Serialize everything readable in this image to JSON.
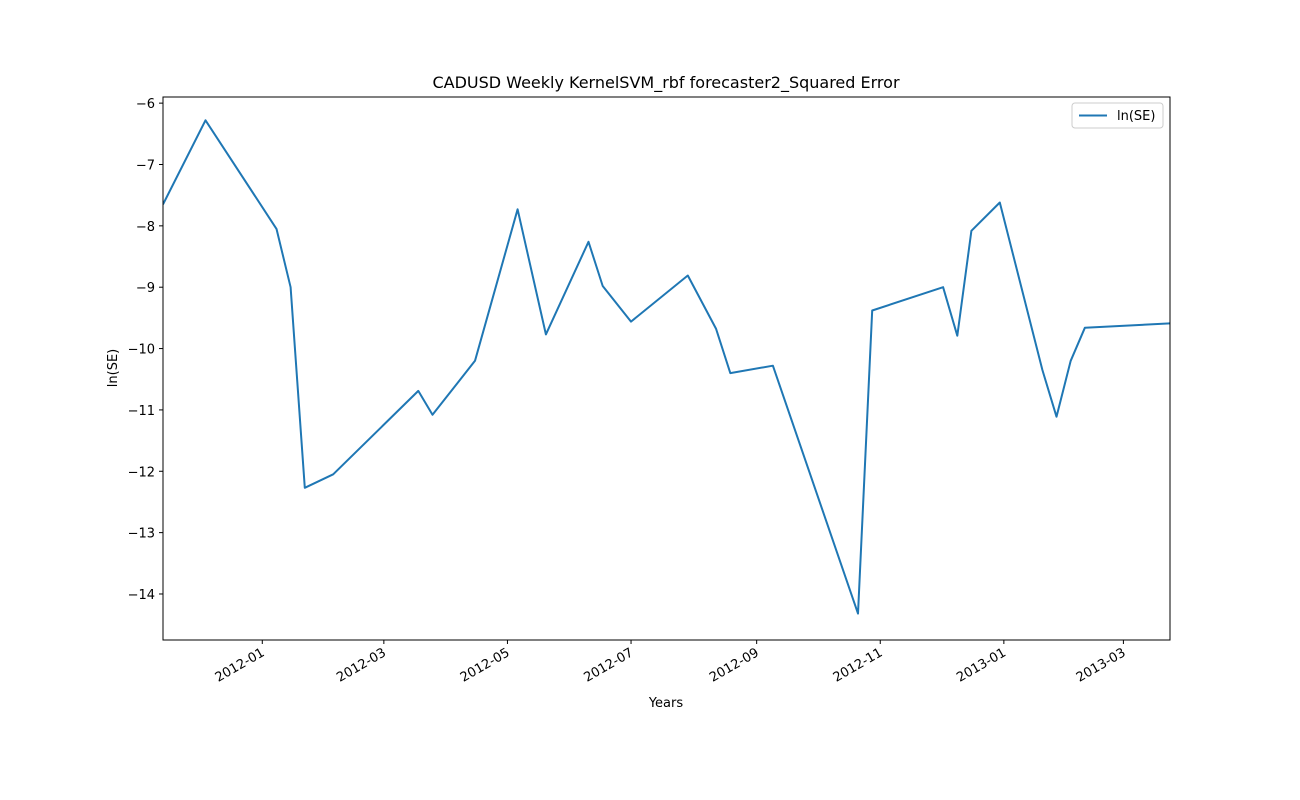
{
  "chart_data": {
    "type": "line",
    "title": "CADUSD Weekly KernelSVM_rbf forecaster2_Squared Error",
    "xlabel": "Years",
    "ylabel": "ln(SE)",
    "x_tick_labels": [
      "2012-01",
      "2012-03",
      "2012-05",
      "2012-07",
      "2012-09",
      "2012-11",
      "2013-01",
      "2013-03"
    ],
    "y_tick_labels": [
      "−6",
      "−7",
      "−8",
      "−9",
      "−10",
      "−11",
      "−12",
      "−13",
      "−14"
    ],
    "y_ticks": [
      -6,
      -7,
      -8,
      -9,
      -10,
      -11,
      -12,
      -13,
      -14
    ],
    "xlim": [
      "2011-11-13",
      "2013-03-24"
    ],
    "ylim": [
      -14.75,
      -5.9
    ],
    "legend": {
      "position": "top-right",
      "entries": [
        "ln(SE)"
      ]
    },
    "grid": false,
    "series": [
      {
        "name": "ln(SE)",
        "color": "#1f77b4",
        "x": [
          "2011-11-13",
          "2011-12-04",
          "2012-01-08",
          "2012-01-15",
          "2012-01-22",
          "2012-02-05",
          "2012-03-18",
          "2012-03-25",
          "2012-04-15",
          "2012-05-06",
          "2012-05-20",
          "2012-06-10",
          "2012-06-17",
          "2012-07-01",
          "2012-07-29",
          "2012-08-12",
          "2012-08-19",
          "2012-09-09",
          "2012-10-21",
          "2012-10-28",
          "2012-12-02",
          "2012-12-09",
          "2012-12-16",
          "2012-12-30",
          "2013-01-20",
          "2013-01-27",
          "2013-02-03",
          "2013-02-10",
          "2013-03-24"
        ],
        "y": [
          -7.65,
          -6.28,
          -8.05,
          -9.0,
          -12.27,
          -12.05,
          -10.69,
          -11.08,
          -10.2,
          -7.73,
          -9.77,
          -8.26,
          -8.98,
          -9.56,
          -8.81,
          -9.68,
          -10.4,
          -10.28,
          -14.32,
          -9.38,
          -9.0,
          -9.79,
          -8.08,
          -7.62,
          -10.35,
          -11.11,
          -10.2,
          -9.66,
          -9.59
        ]
      }
    ]
  }
}
